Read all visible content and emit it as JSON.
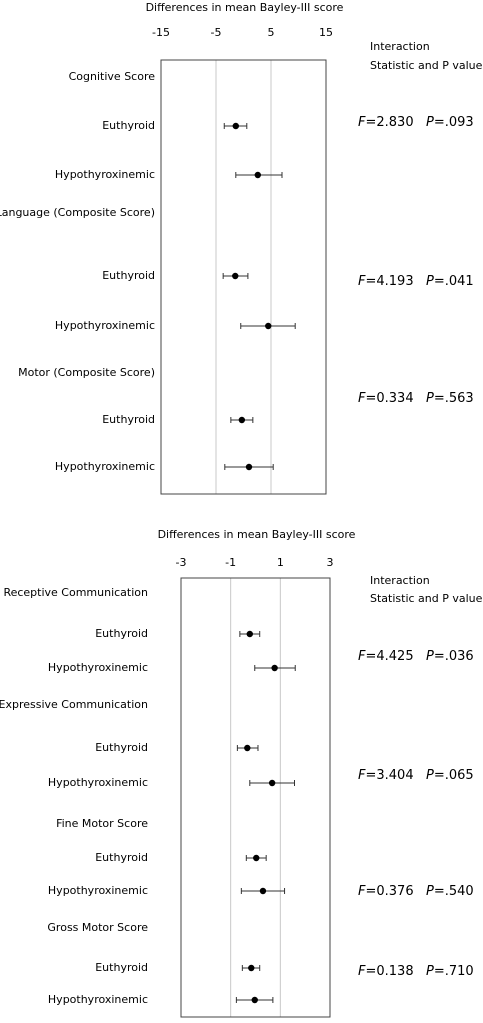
{
  "chart_data": [
    {
      "type": "forest",
      "xlabel": "Differences in mean Bayley-III score",
      "xlim": [
        -15,
        15
      ],
      "xticks": [
        -15,
        -5,
        5,
        15
      ],
      "stat_header": [
        "Interaction",
        "Statistic and P value"
      ],
      "categories": [
        "Cognitive Score",
        "Euthyroid",
        "Hypothyroxinemic",
        "Language (Composite Score)",
        "Euthyroid",
        "Hypothyroxinemic",
        "Motor (Composite Score)",
        "Euthyroid",
        "Hypothyroxinemic"
      ],
      "values": [
        null,
        -1.4,
        2.6,
        null,
        -1.5,
        4.5,
        null,
        -0.3,
        1.0
      ],
      "lower": [
        null,
        -3.5,
        -1.4,
        null,
        -3.7,
        -0.5,
        null,
        -2.3,
        -3.4
      ],
      "upper": [
        null,
        0.6,
        7.0,
        null,
        0.8,
        9.4,
        null,
        1.7,
        5.4
      ],
      "stats": [
        [
          "F=2.830",
          "P=.093"
        ],
        [
          "F=4.193",
          "P=.041"
        ],
        [
          "F=0.334",
          "P=.563"
        ]
      ]
    },
    {
      "type": "forest",
      "xlabel": "Differences in mean Bayley-III score",
      "xlim": [
        -3,
        3
      ],
      "xticks": [
        -3,
        -1,
        1,
        3
      ],
      "stat_header": [
        "Interaction",
        "Statistic and P value"
      ],
      "categories": [
        "Receptive Communication",
        "Euthyroid",
        "Hypothyroxinemic",
        "Expressive Communication",
        "Euthyroid",
        "Hypothyroxinemic",
        "Fine Motor Score",
        "Euthyroid",
        "Hypothyroxinemic",
        "Gross Motor Score",
        "Euthyroid",
        "Hypothyroxinemic"
      ],
      "values": [
        null,
        -0.23,
        0.77,
        null,
        -0.33,
        0.67,
        null,
        0.03,
        0.3,
        null,
        -0.17,
        -0.03
      ],
      "lower": [
        null,
        -0.63,
        -0.03,
        null,
        -0.73,
        -0.23,
        null,
        -0.37,
        -0.57,
        null,
        -0.53,
        -0.77
      ],
      "upper": [
        null,
        0.17,
        1.6,
        null,
        0.1,
        1.57,
        null,
        0.43,
        1.17,
        null,
        0.17,
        0.7
      ],
      "stats": [
        [
          "F=4.425",
          "P=.036"
        ],
        [
          "F=3.404",
          "P=.065"
        ],
        [
          "F=0.376",
          "P=.540"
        ],
        [
          "F=0.138",
          "P=.710"
        ]
      ]
    }
  ]
}
